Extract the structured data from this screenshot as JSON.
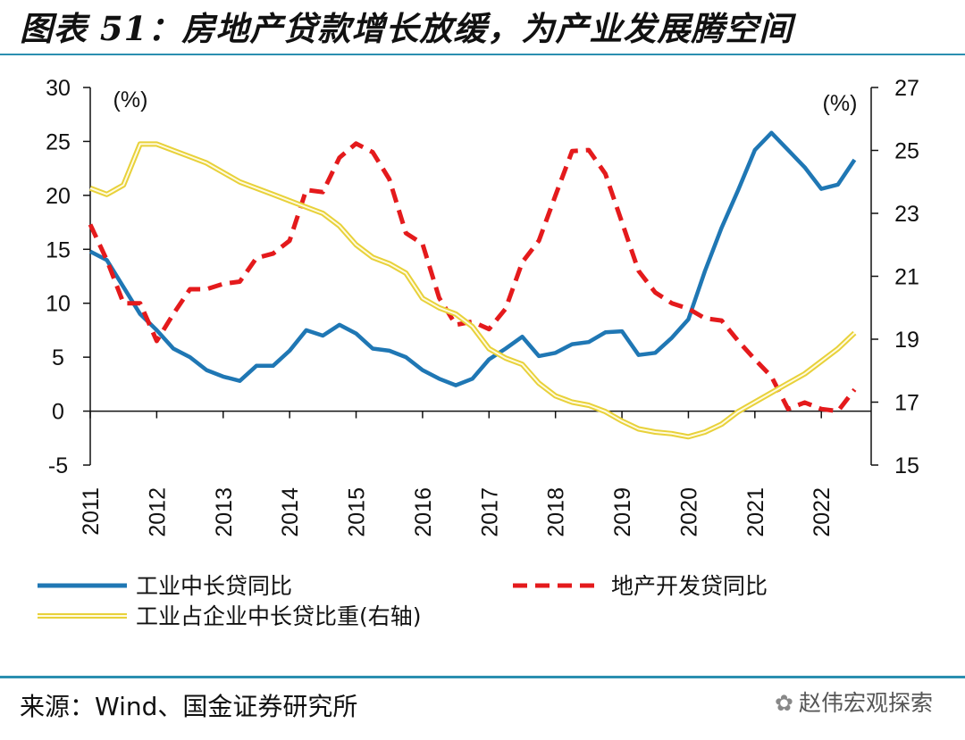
{
  "title": "图表 51：房地产贷款增长放缓，为产业发展腾空间",
  "source": "来源：Wind、国金证券研究所",
  "watermark": "赵伟宏观探索",
  "colors": {
    "rule": "#2b8fb0",
    "industry_loan": "#1f77b4",
    "real_estate_loan": "#e41a1c",
    "industry_share": "#e8d13a"
  },
  "chart_data": {
    "type": "line",
    "left_axis": {
      "unit": "(%)",
      "ylim": [
        -5,
        30
      ],
      "ticks": [
        -5,
        0,
        5,
        10,
        15,
        20,
        25,
        30
      ]
    },
    "right_axis": {
      "unit": "(%)",
      "ylim": [
        15,
        27
      ],
      "ticks": [
        15,
        17,
        19,
        21,
        23,
        25,
        27
      ]
    },
    "x_ticks": [
      "2011",
      "2012",
      "2013",
      "2014",
      "2015",
      "2016",
      "2017",
      "2018",
      "2019",
      "2020",
      "2021",
      "2022"
    ],
    "xlim": [
      2011.0,
      2022.75
    ],
    "series": [
      {
        "name": "工业中长贷同比",
        "axis": "left",
        "style": "solid",
        "x": [
          2011.0,
          2011.25,
          2011.5,
          2011.75,
          2012.0,
          2012.25,
          2012.5,
          2012.75,
          2013.0,
          2013.25,
          2013.5,
          2013.75,
          2014.0,
          2014.25,
          2014.5,
          2014.75,
          2015.0,
          2015.25,
          2015.5,
          2015.75,
          2016.0,
          2016.25,
          2016.5,
          2016.75,
          2017.0,
          2017.25,
          2017.5,
          2017.75,
          2018.0,
          2018.25,
          2018.5,
          2018.75,
          2019.0,
          2019.25,
          2019.5,
          2019.75,
          2020.0,
          2020.25,
          2020.5,
          2020.75,
          2021.0,
          2021.25,
          2021.5,
          2021.75,
          2022.0,
          2022.25,
          2022.5
        ],
        "values": [
          14.8,
          14.0,
          11.5,
          9.0,
          7.5,
          5.8,
          5.0,
          3.8,
          3.2,
          2.8,
          4.2,
          4.2,
          5.6,
          7.5,
          7.0,
          8.0,
          7.2,
          5.8,
          5.6,
          5.0,
          3.8,
          3.0,
          2.4,
          3.0,
          4.8,
          5.8,
          6.9,
          5.1,
          5.4,
          6.2,
          6.4,
          7.3,
          7.4,
          5.2,
          5.4,
          6.8,
          8.5,
          13.0,
          17.0,
          20.5,
          24.2,
          25.8,
          24.2,
          22.6,
          20.6,
          21.0,
          23.3
        ]
      },
      {
        "name": "地产开发贷同比",
        "axis": "left",
        "style": "dashed",
        "x": [
          2011.0,
          2011.25,
          2011.5,
          2011.75,
          2012.0,
          2012.25,
          2012.5,
          2012.75,
          2013.0,
          2013.25,
          2013.5,
          2013.75,
          2014.0,
          2014.25,
          2014.5,
          2014.75,
          2015.0,
          2015.25,
          2015.5,
          2015.75,
          2016.0,
          2016.25,
          2016.5,
          2016.75,
          2017.0,
          2017.25,
          2017.5,
          2017.75,
          2018.0,
          2018.25,
          2018.5,
          2018.75,
          2019.0,
          2019.25,
          2019.5,
          2019.75,
          2020.0,
          2020.25,
          2020.5,
          2020.75,
          2021.0,
          2021.25,
          2021.5,
          2021.75,
          2022.0,
          2022.25,
          2022.5
        ],
        "values": [
          17.3,
          14.0,
          10.0,
          10.0,
          6.5,
          9.0,
          11.3,
          11.3,
          11.8,
          12.0,
          14.2,
          14.6,
          15.8,
          20.5,
          20.3,
          23.5,
          24.8,
          24.0,
          21.5,
          16.5,
          15.5,
          10.5,
          8.0,
          8.3,
          7.6,
          9.5,
          13.8,
          15.8,
          20.0,
          24.1,
          24.2,
          22.0,
          17.5,
          13.0,
          11.0,
          10.0,
          9.5,
          8.6,
          8.4,
          6.5,
          4.8,
          3.2,
          0.2,
          0.8,
          0.2,
          0.0,
          2.0
        ]
      },
      {
        "name": "工业占企业中长贷比重(右轴)",
        "axis": "right",
        "style": "double",
        "x": [
          2011.0,
          2011.25,
          2011.5,
          2011.75,
          2012.0,
          2012.25,
          2012.5,
          2012.75,
          2013.0,
          2013.25,
          2013.5,
          2013.75,
          2014.0,
          2014.25,
          2014.5,
          2014.75,
          2015.0,
          2015.25,
          2015.5,
          2015.75,
          2016.0,
          2016.25,
          2016.5,
          2016.75,
          2017.0,
          2017.25,
          2017.5,
          2017.75,
          2018.0,
          2018.25,
          2018.5,
          2018.75,
          2019.0,
          2019.25,
          2019.5,
          2019.75,
          2020.0,
          2020.25,
          2020.5,
          2020.75,
          2021.0,
          2021.25,
          2021.5,
          2021.75,
          2022.0,
          2022.25,
          2022.5
        ],
        "values": [
          23.8,
          23.6,
          23.9,
          25.2,
          25.2,
          25.0,
          24.8,
          24.6,
          24.3,
          24.0,
          23.8,
          23.6,
          23.4,
          23.2,
          23.0,
          22.6,
          22.0,
          21.6,
          21.4,
          21.1,
          20.3,
          20.0,
          19.8,
          19.4,
          18.7,
          18.4,
          18.2,
          17.6,
          17.2,
          17.0,
          16.9,
          16.7,
          16.4,
          16.15,
          16.05,
          16.0,
          15.9,
          16.05,
          16.3,
          16.7,
          17.0,
          17.3,
          17.6,
          17.9,
          18.3,
          18.7,
          19.2
        ]
      }
    ]
  }
}
